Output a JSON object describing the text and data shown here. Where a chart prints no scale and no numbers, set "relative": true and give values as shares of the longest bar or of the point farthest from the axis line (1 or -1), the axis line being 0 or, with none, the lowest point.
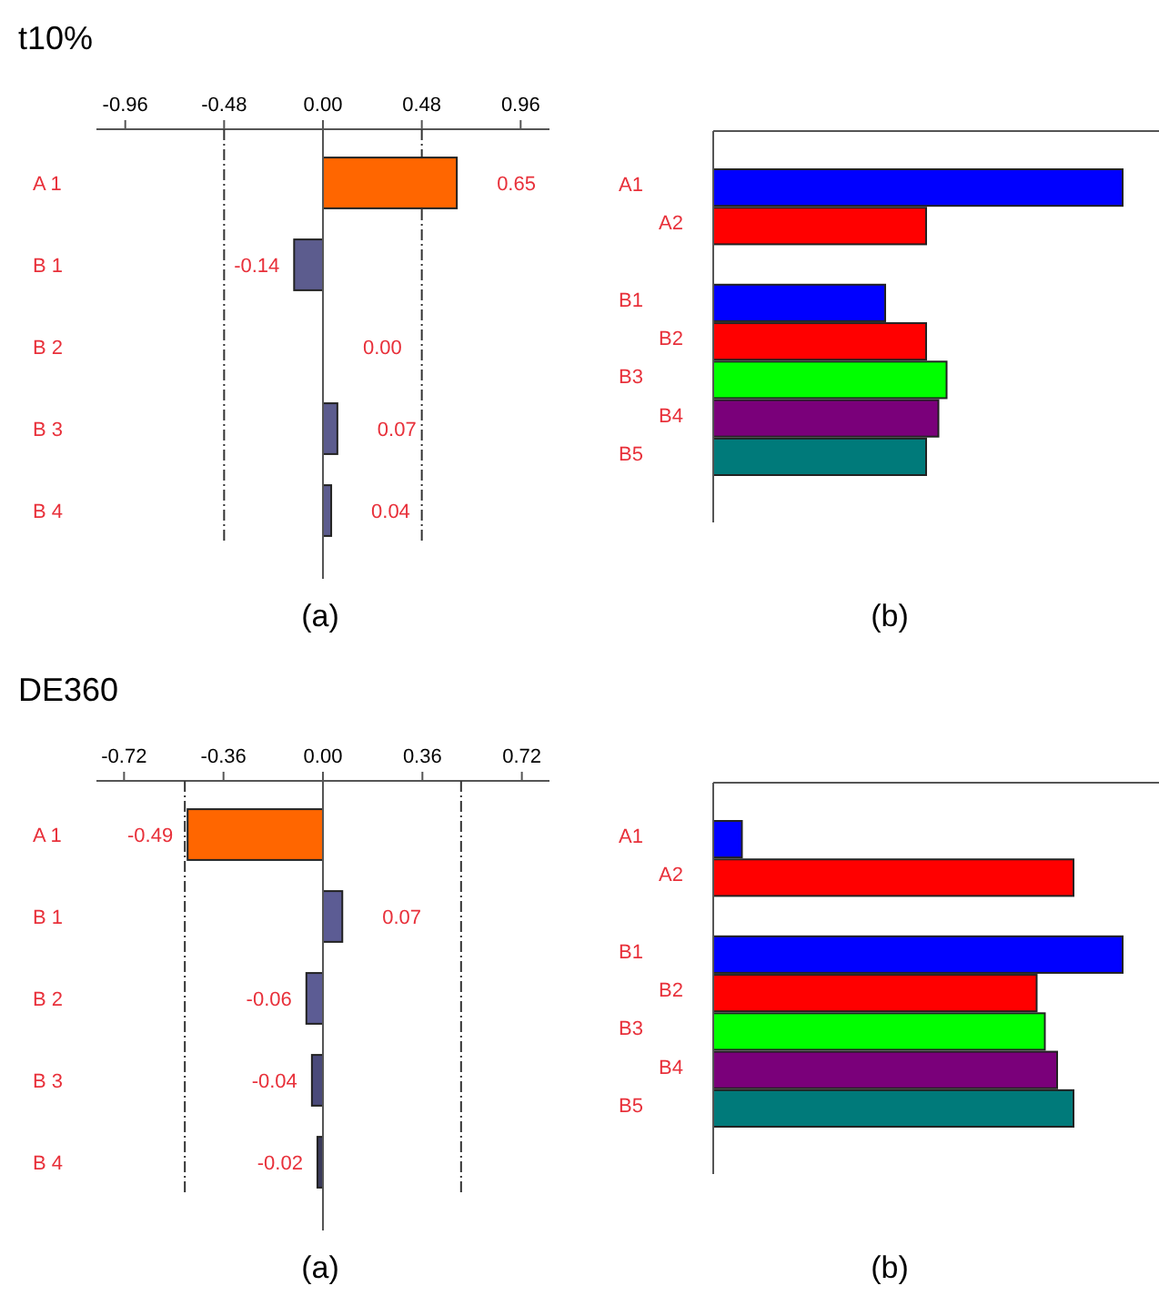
{
  "chart_data": [
    {
      "type": "bar",
      "orientation": "horizontal",
      "title": "t10%",
      "annotations": [
        "(a)"
      ],
      "categories": [
        "A 1",
        "B 1",
        "B 2",
        "B 3",
        "B 4"
      ],
      "values": [
        0.65,
        -0.14,
        0.0,
        0.07,
        0.04
      ],
      "colors": [
        "#ff6600",
        "#5c5c8e",
        "#5c5c8e",
        "#5c5c8e",
        "#5c5c8e"
      ],
      "xlim": [
        -1.1,
        1.1
      ],
      "xticks": [
        -0.96,
        -0.48,
        {
          "value": 0,
          "label": "0.00"
        },
        0.48,
        0.96
      ],
      "ref_lines": [
        {
          "axis": "x",
          "value": -0.48,
          "line_style": "dashed"
        },
        {
          "axis": "x",
          "value": 0.48,
          "line_style": "dashed"
        }
      ],
      "value_labels": [
        "0.65",
        "-0.14",
        "0.00",
        "0.07",
        "0.04"
      ]
    },
    {
      "type": "bar",
      "orientation": "horizontal",
      "relative": true,
      "annotations": [
        "(b)"
      ],
      "categories": [
        "A1",
        "A2",
        null,
        "B1",
        "B2",
        "B3",
        "B4",
        "B5"
      ],
      "values": [
        1,
        0.52,
        null,
        0.42,
        0.52,
        0.57,
        0.55,
        0.52
      ],
      "colors": [
        "#0000ff",
        "#ff0000",
        null,
        "#0000ff",
        "#ff0000",
        "#00ff00",
        "#7a007a",
        "#007a7a"
      ]
    },
    {
      "type": "bar",
      "orientation": "horizontal",
      "title": "DE360",
      "annotations": [
        "(a)"
      ],
      "categories": [
        "A 1",
        "B 1",
        "B 2",
        "B 3",
        "B 4"
      ],
      "values": [
        -0.49,
        0.07,
        -0.06,
        -0.04,
        -0.02
      ],
      "colors": [
        "#ff6600",
        "#5c5c94",
        "#5c5c94",
        "#4a4a7a",
        "#3a3a5a"
      ],
      "xlim": [
        -0.82,
        0.82
      ],
      "xticks": [
        -0.72,
        -0.36,
        {
          "value": 0,
          "label": "0.00"
        },
        0.36,
        0.72
      ],
      "ref_lines": [
        {
          "axis": "x",
          "value": -0.5,
          "line_style": "dashed"
        },
        {
          "axis": "x",
          "value": 0.5,
          "line_style": "dashed"
        }
      ],
      "value_labels": [
        "-0.49",
        "0.07",
        "-0.06",
        "-0.04",
        "-0.02"
      ]
    },
    {
      "type": "bar",
      "orientation": "horizontal",
      "relative": true,
      "annotations": [
        "(b)"
      ],
      "categories": [
        "A1",
        "A2",
        null,
        "B1",
        "B2",
        "B3",
        "B4",
        "B5"
      ],
      "values": [
        0.07,
        0.88,
        null,
        1,
        0.79,
        0.81,
        0.84,
        0.88
      ],
      "colors": [
        "#0000ff",
        "#ff0000",
        null,
        "#0000ff",
        "#ff0000",
        "#00ff00",
        "#7a007a",
        "#007a7a"
      ]
    }
  ]
}
